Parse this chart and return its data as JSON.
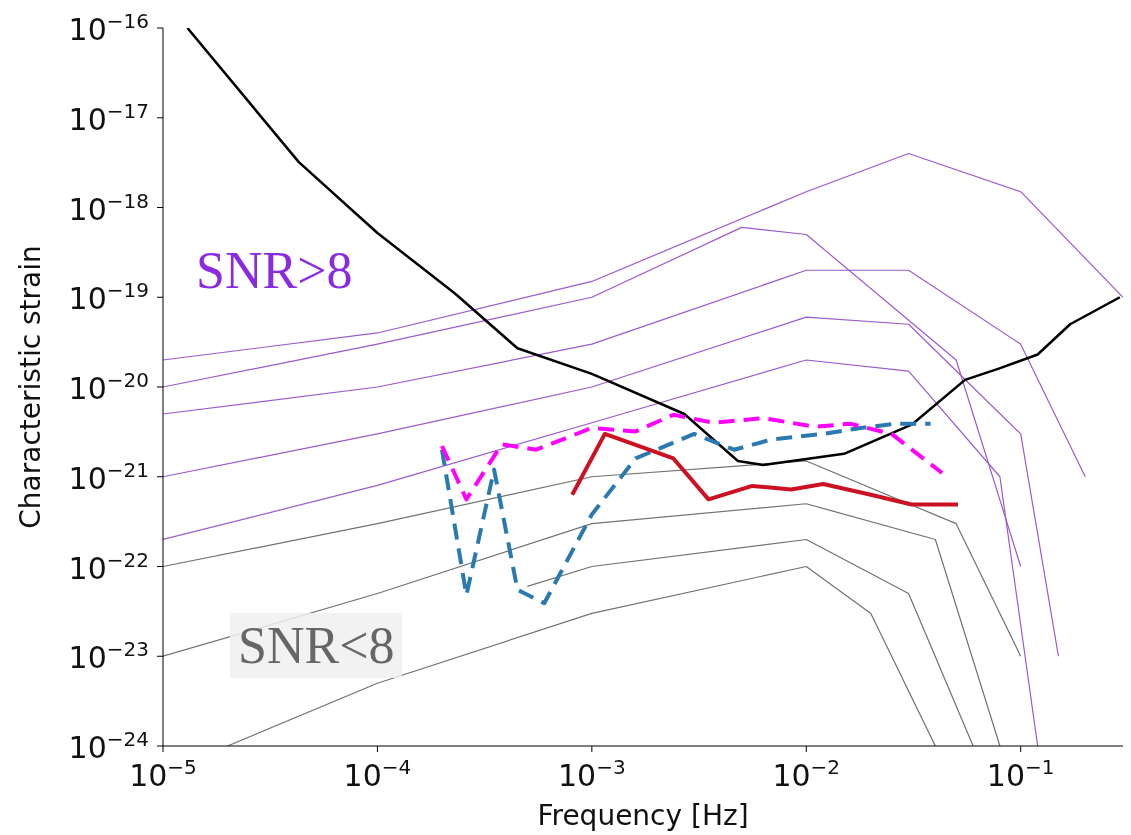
{
  "chart_data": {
    "type": "line",
    "xlabel": "Frequency [Hz]",
    "ylabel": "Characteristic strain",
    "log": "xy",
    "marker": "none",
    "xlim": [
      1e-05,
      0.3
    ],
    "ylim": [
      1e-24,
      1e-16
    ],
    "xticks": [
      {
        "value": 1e-05,
        "label": "10$^{−5}$"
      },
      {
        "value": 0.0001,
        "label": "10$^{−4}$"
      },
      {
        "value": 0.001,
        "label": "10$^{−3}$"
      },
      {
        "value": 0.01,
        "label": "10$^{−2}$"
      },
      {
        "value": 0.1,
        "label": "10$^{−1}$"
      }
    ],
    "yticks": [
      {
        "value": 1e-24,
        "label": "10$^{−24}$"
      },
      {
        "value": 1e-23,
        "label": "10$^{−23}$"
      },
      {
        "value": 1e-22,
        "label": "10$^{−22}$"
      },
      {
        "value": 1e-21,
        "label": "10$^{−21}$"
      },
      {
        "value": 1e-20,
        "label": "10$^{−20}$"
      },
      {
        "value": 1e-19,
        "label": "10$^{−19}$"
      },
      {
        "value": 1e-18,
        "label": "10$^{−18}$"
      },
      {
        "value": 1e-17,
        "label": "10$^{−17}$"
      },
      {
        "value": 1e-16,
        "label": "10$^{−16}$"
      }
    ],
    "annotations": [
      "SNR>8",
      "SNR<8"
    ],
    "series": [
      {
        "color": "#6e736e",
        "line_style": "solid",
        "x": [
          1e-05,
          0.0001,
          0.001,
          0.01,
          0.05,
          0.1
        ],
        "values": [
          1e-22,
          3e-22,
          1e-21,
          1.5e-21,
          3e-22,
          1e-23
        ]
      },
      {
        "color": "#6e736e",
        "line_style": "solid",
        "x": [
          0.0005,
          0.001,
          0.01,
          0.03,
          0.06
        ],
        "values": [
          6e-23,
          1e-22,
          2e-22,
          5e-23,
          1e-24
        ]
      },
      {
        "color": "#6e736e",
        "line_style": "solid",
        "x": [
          1e-05,
          0.0001,
          0.001,
          0.01,
          0.04,
          0.08
        ],
        "values": [
          1e-23,
          5e-23,
          3e-22,
          5e-22,
          2e-22,
          1e-24
        ]
      },
      {
        "color": "#6e736e",
        "line_style": "solid",
        "x": [
          2e-05,
          0.0001,
          0.001,
          0.01,
          0.02,
          0.04
        ],
        "values": [
          1e-24,
          5e-24,
          3e-23,
          1e-22,
          3e-23,
          1e-24
        ]
      },
      {
        "color": "#9b59d0",
        "line_style": "solid",
        "x": [
          1e-05,
          0.0001,
          0.001,
          0.01,
          0.03,
          0.1,
          0.3
        ],
        "values": [
          2e-20,
          4e-20,
          1.5e-19,
          1.5e-18,
          4e-18,
          1.5e-18,
          1e-19
        ]
      },
      {
        "color": "#9b59d0",
        "line_style": "solid",
        "x": [
          1e-05,
          0.0001,
          0.001,
          0.01,
          0.03,
          0.1,
          0.2
        ],
        "values": [
          5e-21,
          1e-20,
          3e-20,
          2e-19,
          2e-19,
          3e-20,
          1e-21
        ]
      },
      {
        "color": "#9b59d0",
        "line_style": "solid",
        "x": [
          1e-05,
          0.0001,
          0.001,
          0.01,
          0.03,
          0.1,
          0.15
        ],
        "values": [
          1e-21,
          3e-21,
          1e-20,
          6e-20,
          5e-20,
          3e-21,
          1e-23
        ]
      },
      {
        "color": "#9b59d0",
        "line_style": "solid",
        "x": [
          1e-05,
          0.0001,
          0.001,
          0.01,
          0.03,
          0.08,
          0.12
        ],
        "values": [
          2e-22,
          8e-22,
          4e-21,
          2e-20,
          1.5e-20,
          1e-21,
          1e-24
        ]
      },
      {
        "color": "#9b59d0",
        "line_style": "solid",
        "x": [
          1e-05,
          0.0001,
          0.001,
          0.005,
          0.01,
          0.05,
          0.1
        ],
        "values": [
          1e-20,
          3e-20,
          1e-19,
          6e-19,
          5e-19,
          2e-20,
          1e-22
        ]
      },
      {
        "color": "#000000",
        "line_style": "solid",
        "x": [
          1.3e-05,
          4.3e-05,
          0.0001,
          0.00023,
          0.00045,
          0.001,
          0.0027,
          0.0048,
          0.0063,
          0.015,
          0.031,
          0.055,
          0.079,
          0.12,
          0.17,
          0.29
        ],
        "values": [
          1e-16,
          3.2e-18,
          5.2e-19,
          1.1e-19,
          2.7e-20,
          1.4e-20,
          5e-21,
          1.5e-21,
          1.35e-21,
          1.8e-21,
          3.8e-21,
          1.2e-20,
          1.6e-20,
          2.3e-20,
          5e-20,
          1e-19
        ]
      },
      {
        "color": "#2a7ab0",
        "line_style": "dashed",
        "x": [
          0.0002,
          0.00026,
          0.00035,
          0.00045,
          0.0006,
          0.001,
          0.0016,
          0.003,
          0.0046,
          0.0069,
          0.012,
          0.018,
          0.026,
          0.038
        ],
        "values": [
          2e-21,
          4.8e-23,
          1.2e-21,
          5.5e-23,
          3.9e-23,
          3.8e-22,
          1.6e-21,
          3e-21,
          2e-21,
          2.6e-21,
          3e-21,
          3.5e-21,
          3.9e-21,
          3.9e-21
        ]
      },
      {
        "color": "#ff00ff",
        "line_style": "dashed",
        "x": [
          0.0002,
          0.00026,
          0.00038,
          0.00055,
          0.001,
          0.0016,
          0.0024,
          0.0037,
          0.0063,
          0.011,
          0.016,
          0.025,
          0.043
        ],
        "values": [
          2.2e-21,
          5.6e-22,
          2.3e-21,
          2e-21,
          3.5e-21,
          3.2e-21,
          4.9e-21,
          4e-21,
          4.5e-21,
          3.6e-21,
          3.9e-21,
          3e-21,
          1.1e-21
        ]
      },
      {
        "color": "#cc1122",
        "line_style": "solid",
        "x": [
          0.00081,
          0.00115,
          0.0024,
          0.0035,
          0.0056,
          0.0085,
          0.012,
          0.02,
          0.031,
          0.051
        ],
        "values": [
          6.3e-22,
          3e-21,
          1.6e-21,
          5.6e-22,
          7.9e-22,
          7.2e-22,
          8.3e-22,
          6.3e-22,
          4.9e-22,
          4.9e-22
        ]
      }
    ]
  }
}
